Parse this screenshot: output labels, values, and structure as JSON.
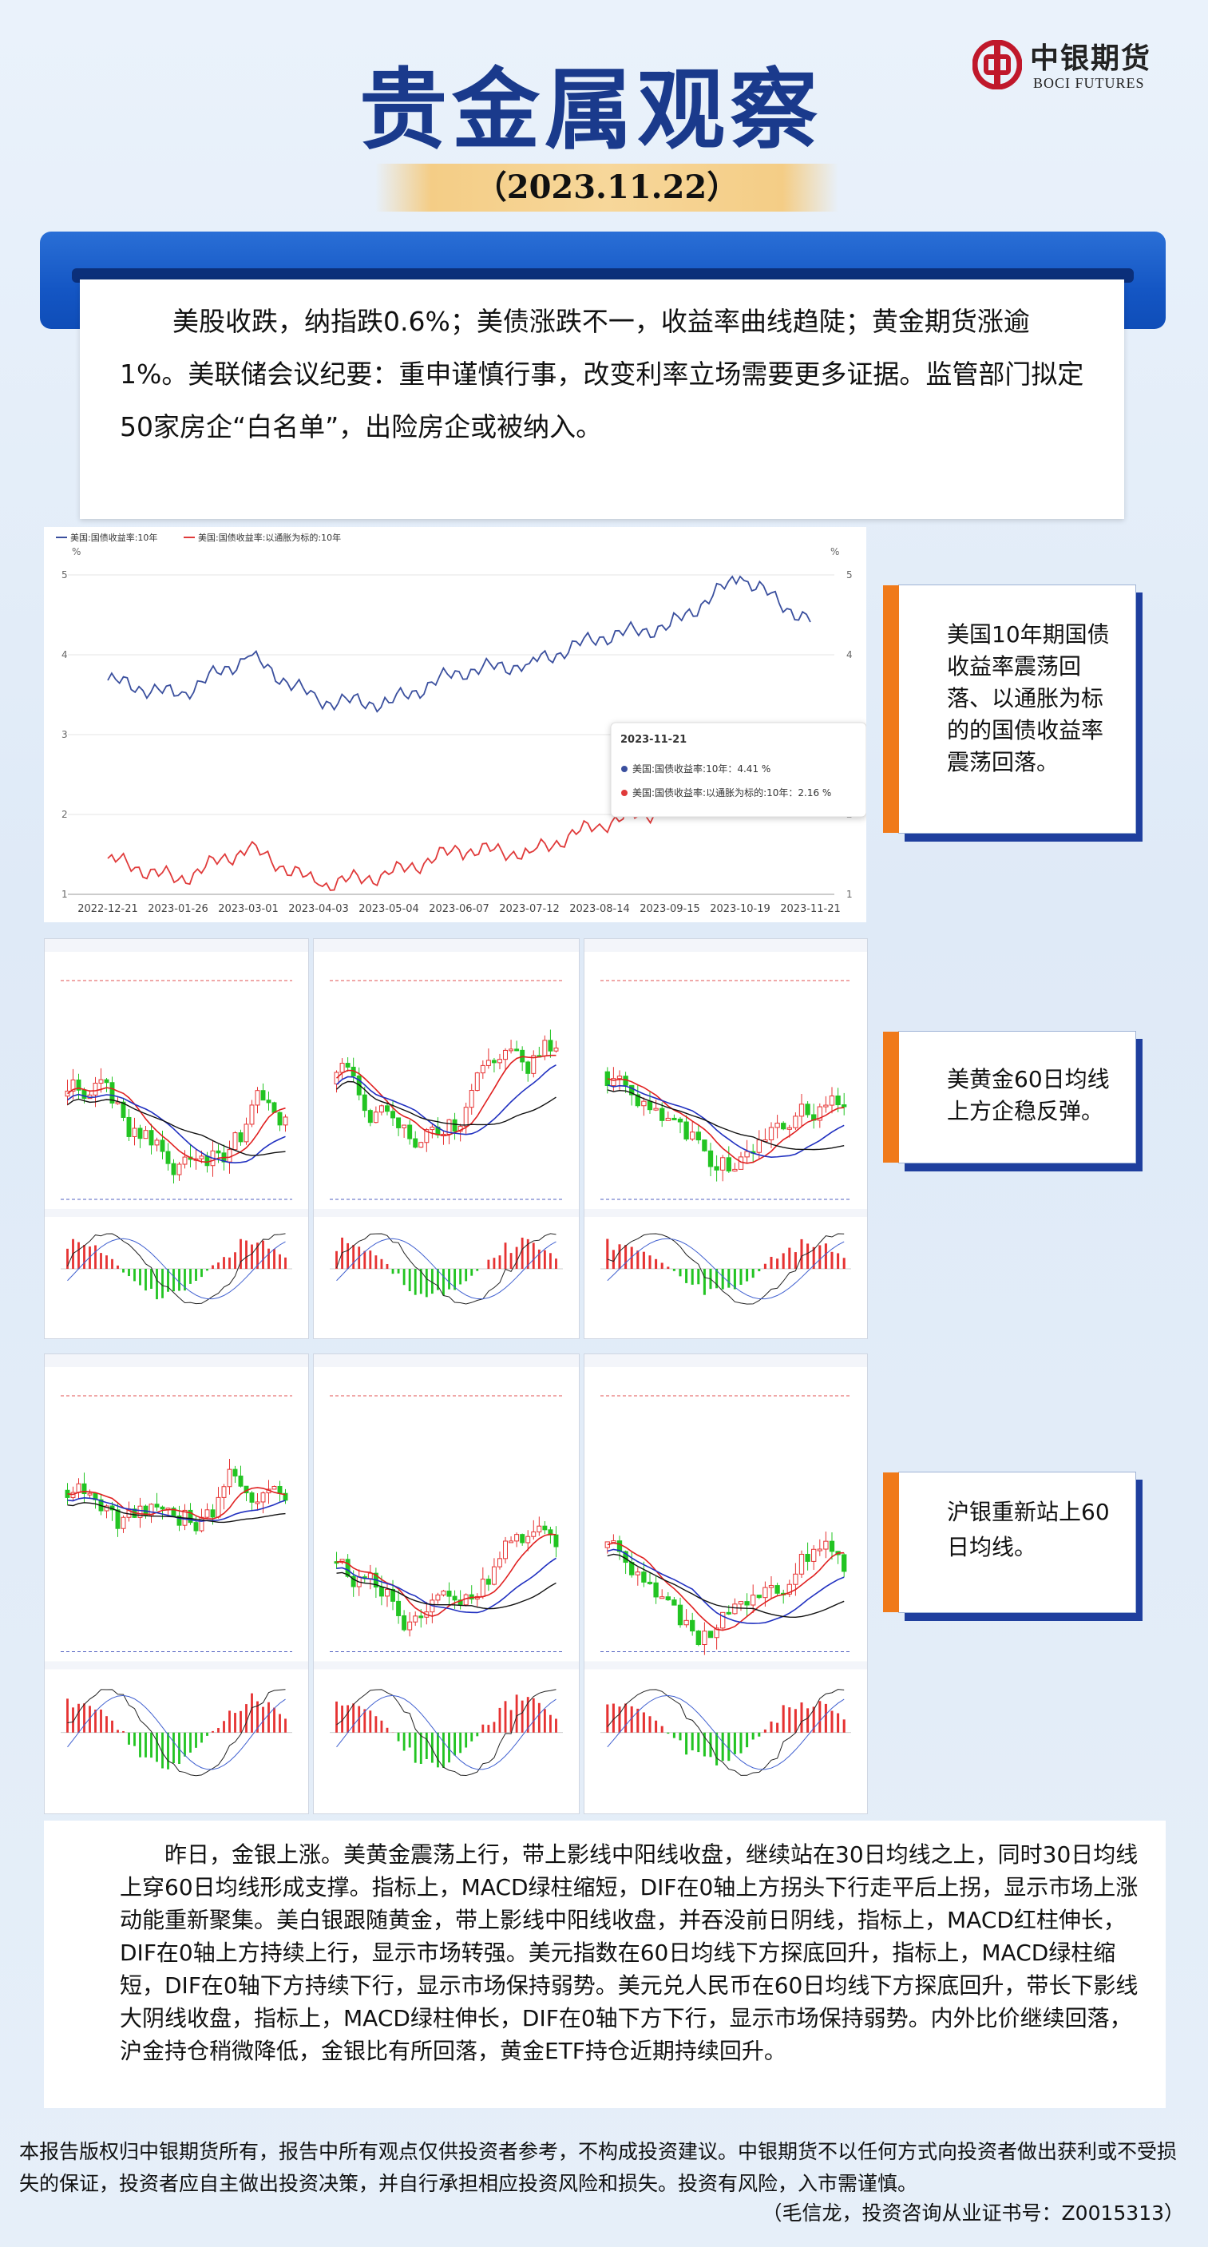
{
  "header": {
    "title": "贵金属观察",
    "date": "（2023.11.22）",
    "logo_cn": "中银期货",
    "logo_en": "BOCI FUTURES"
  },
  "summary": "美股收跌，纳指跌0.6%；美债涨跌不一，收益率曲线趋陡；黄金期货涨逾1%。美联储会议纪要：重申谨慎行事，改变利率立场需要更多证据。监管部门拟定50家房企“白名单”，出险房企或被纳入。",
  "callouts": [
    "美国10年期国债收益率震荡回落、以通胀为标的的国债收益率震荡回落。",
    "美黄金60日均线上方企稳反弹。",
    "沪银重新站上60日均线。"
  ],
  "analysis": "昨日，金银上涨。美黄金震荡上行，带上影线中阳线收盘，继续站在30日均线之上，同时30日均线上穿60日均线形成支撑。指标上，MACD绿柱缩短，DIF在0轴上方拐头下行走平后上拐，显示市场上涨动能重新聚集。美白银跟随黄金，带上影线中阳线收盘，并吞没前日阴线，指标上，MACD红柱伸长，DIF在0轴上方持续上行，显示市场转强。美元指数在60日均线下方探底回升，指标上，MACD绿柱缩短，DIF在0轴下方持续下行，显示市场保持弱势。美元兑人民币在60日均线下方探底回升，带长下影线大阴线收盘，指标上，MACD绿柱伸长，DIF在0轴下方下行，显示市场保持弱势。内外比价继续回落，沪金持仓稍微降低，金银比有所回落，黄金ETF持仓近期持续回升。",
  "footer": {
    "disclaimer": "本报告版权归中银期货所有，报告中所有观点仅供投资者参考，不构成投资建议。中银期货不以任何方式向投资者做出获利或不受损失的保证，投资者应自主做出投资决策，并自行承担相应投资风险和损失。投资有风险，入市需谨慎。",
    "author": "（毛信龙，投资咨询从业证书号：Z0015313）"
  },
  "colors": {
    "title_blue": "#1a3a8c",
    "band_blue": "#1456c4",
    "accent_orange": "#f07a1a",
    "series_blue": "#3a4f9e",
    "series_red": "#e03a3a"
  },
  "chart_data": {
    "type": "line",
    "legend": [
      "美国:国债收益率:10年",
      "美国:国债收益率:以通胀为标的:10年"
    ],
    "y_unit": "%",
    "ylim": [
      1,
      5
    ],
    "yticks": [
      "1",
      "2",
      "3",
      "4",
      "5"
    ],
    "categories": [
      "2022-12-21",
      "2023-01-26",
      "2023-03-01",
      "2023-04-03",
      "2023-05-04",
      "2023-06-07",
      "2023-07-12",
      "2023-08-14",
      "2023-09-15",
      "2023-10-19",
      "2023-11-21"
    ],
    "series": [
      {
        "name": "美国:国债收益率:10年",
        "color": "#3a4f9e",
        "values": [
          3.68,
          3.49,
          3.98,
          3.42,
          3.4,
          3.79,
          3.89,
          4.22,
          4.36,
          4.98,
          4.41
        ]
      },
      {
        "name": "美国:国债收益率:以通胀为标的:10年",
        "color": "#e03a3a",
        "values": [
          1.45,
          1.18,
          1.58,
          1.12,
          1.25,
          1.56,
          1.52,
          1.88,
          2.08,
          2.47,
          2.16
        ]
      }
    ],
    "tooltip": {
      "date": "2023-11-21",
      "rows": [
        "美国:国债收益率:10年：4.41 %",
        "美国:国债收益率:以通胀为标的:10年：2.16 %"
      ]
    }
  }
}
